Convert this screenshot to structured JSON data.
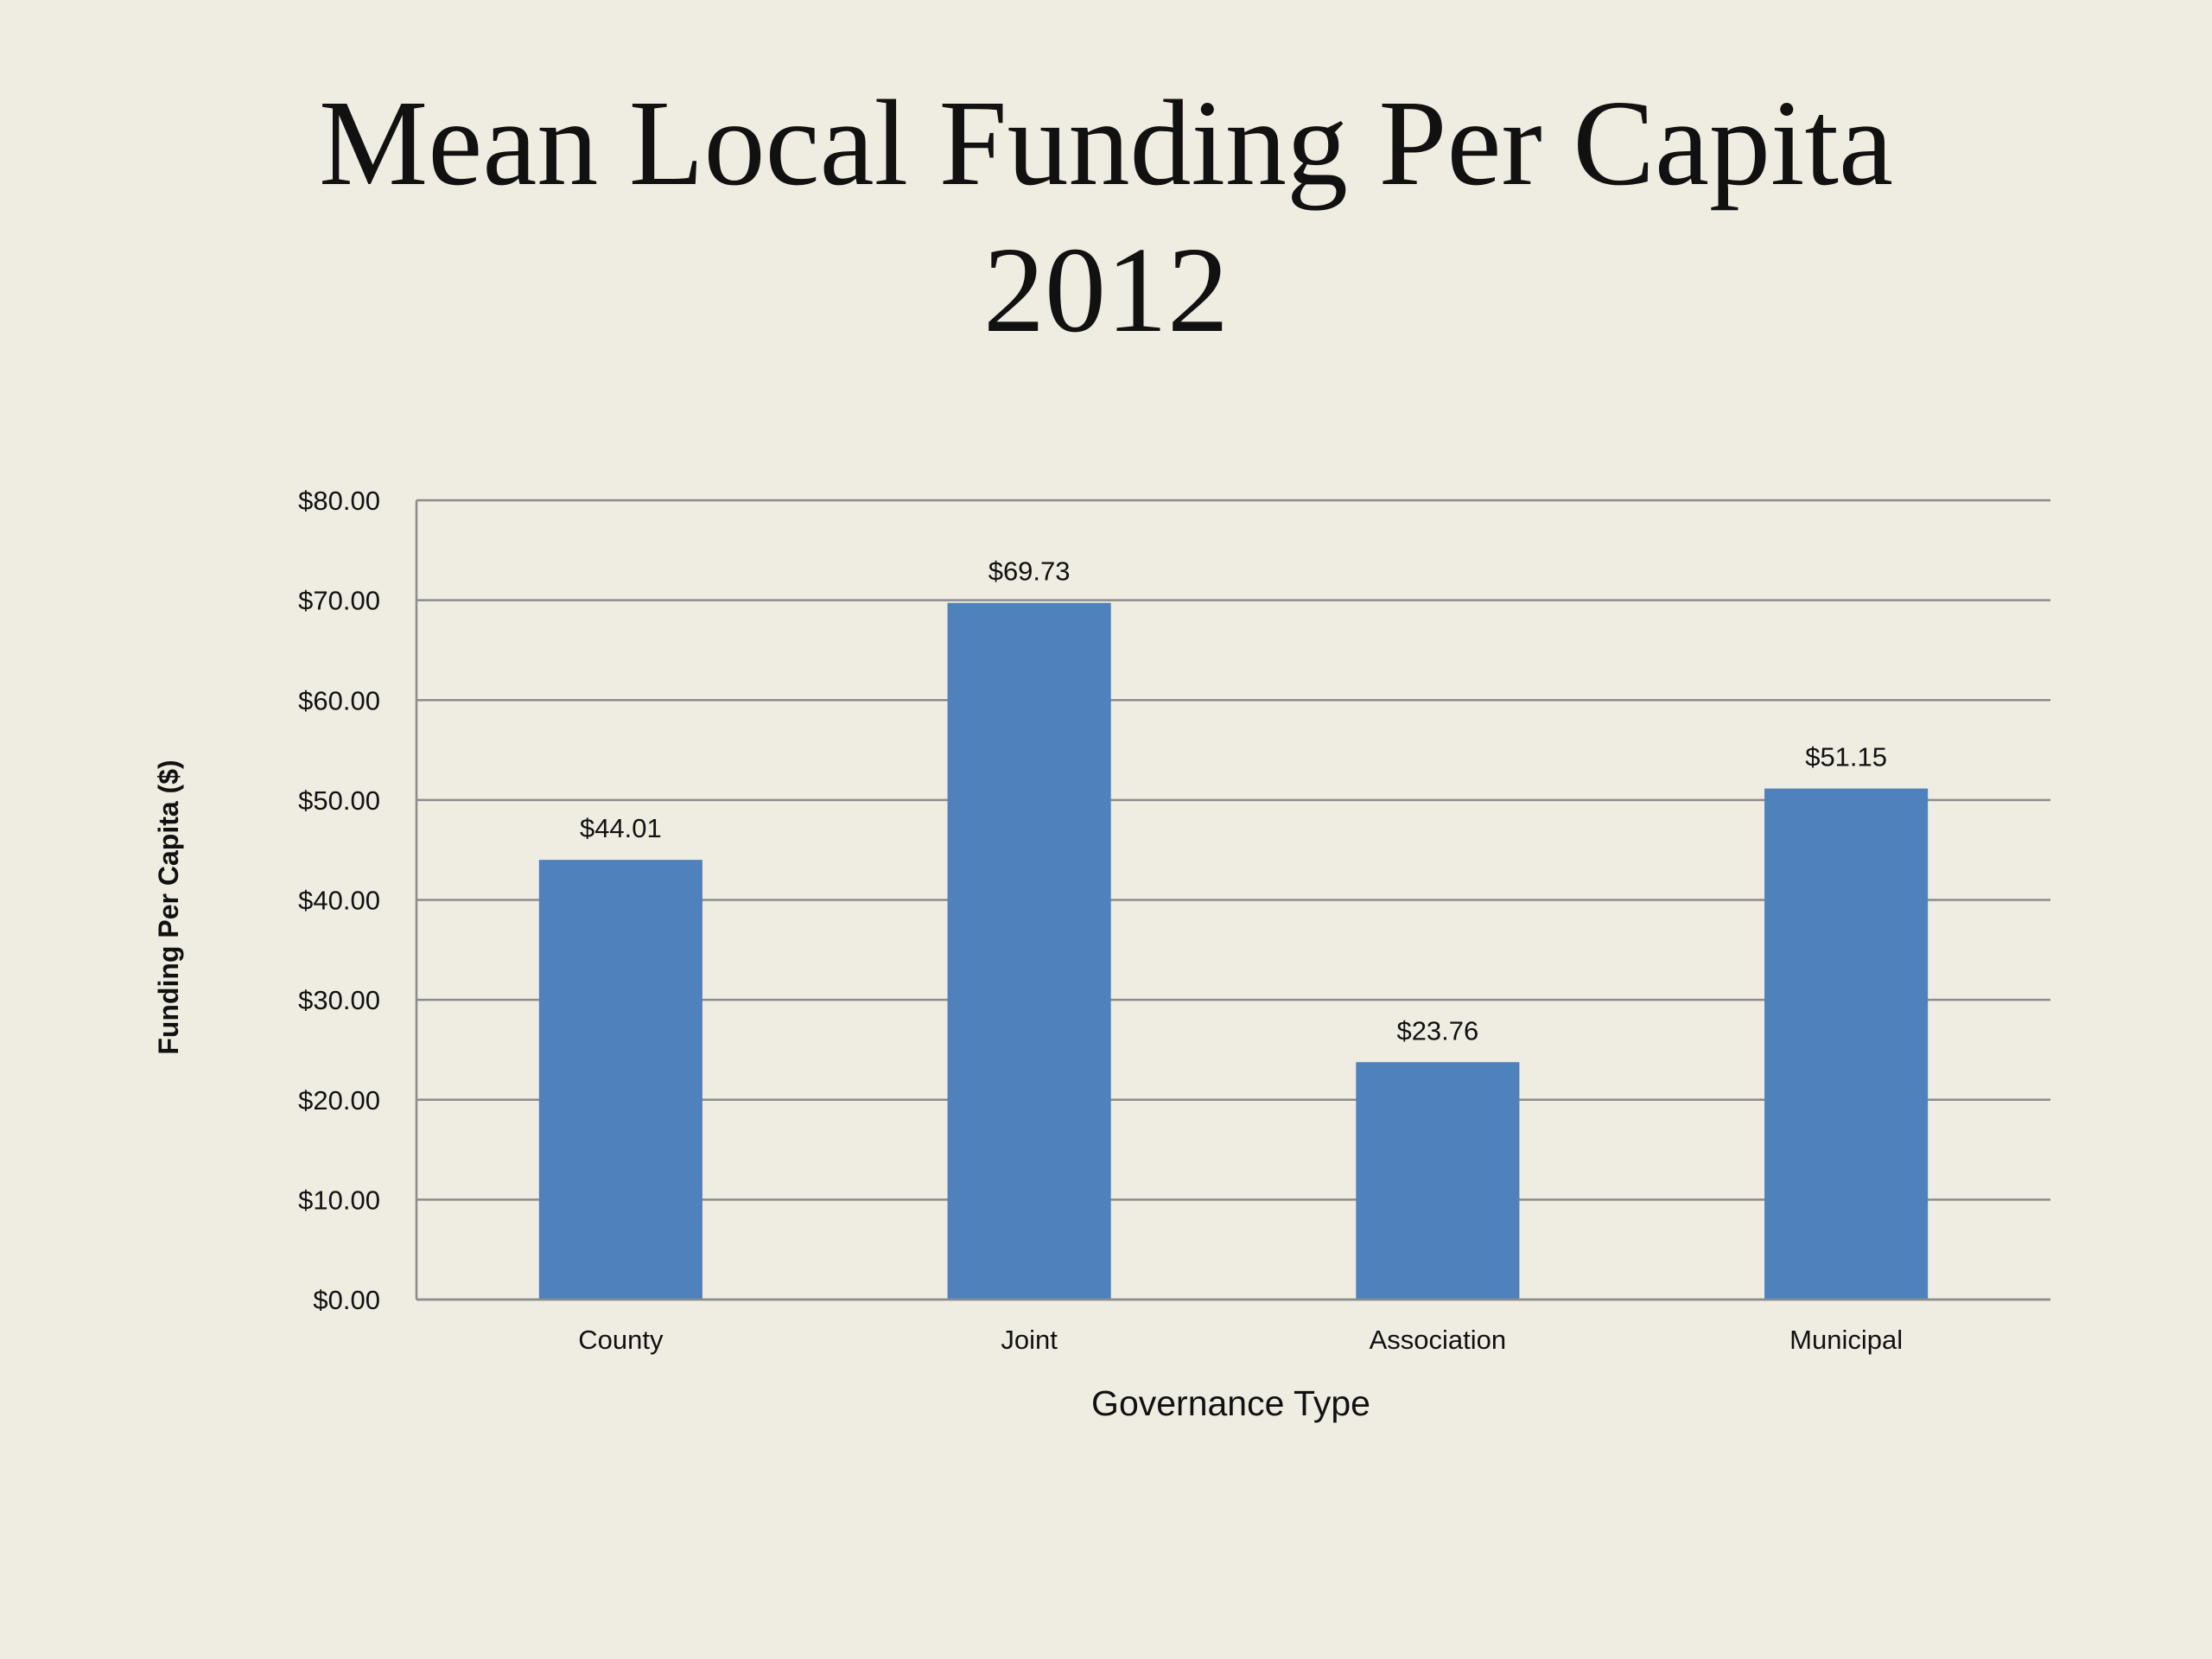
{
  "slide": {
    "title_line1": "Mean Local Funding Per Capita",
    "title_line2": "2012"
  },
  "colors": {
    "background": "#EFECE2",
    "bar": "#4F81BD",
    "gridline": "#8C8C8C",
    "text": "#111111"
  },
  "chart_data": {
    "type": "bar",
    "title": "Mean Local Funding Per Capita 2012",
    "xlabel": "Governance Type",
    "ylabel": "Funding Per Capita ($)",
    "categories": [
      "County",
      "Joint",
      "Association",
      "Municipal"
    ],
    "values": [
      44.01,
      69.73,
      23.76,
      51.15
    ],
    "value_labels": [
      "$44.01",
      "$69.73",
      "$23.76",
      "$51.15"
    ],
    "ylim": [
      0,
      80
    ],
    "yticks": [
      0,
      10,
      20,
      30,
      40,
      50,
      60,
      70,
      80
    ],
    "ytick_labels": [
      "$0.00",
      "$10.00",
      "$20.00",
      "$30.00",
      "$40.00",
      "$50.00",
      "$60.00",
      "$70.00",
      "$80.00"
    ],
    "grid": true,
    "legend": "none"
  }
}
